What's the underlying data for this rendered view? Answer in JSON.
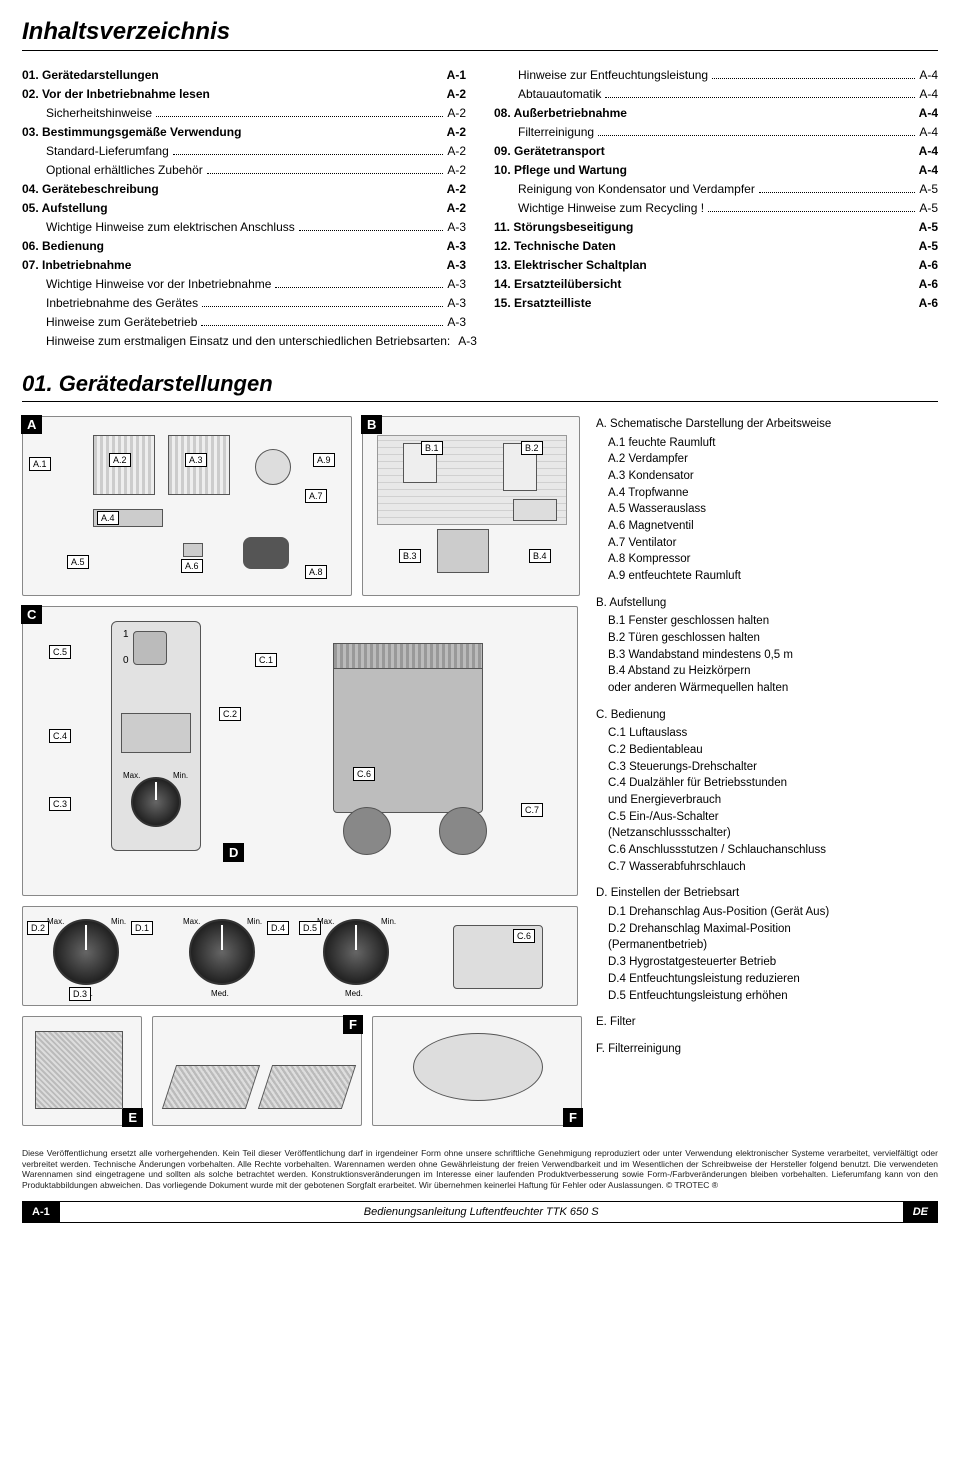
{
  "toc_title": "Inhaltsverzeichnis",
  "toc_left": [
    {
      "bold": true,
      "label": "01. Gerätedarstellungen",
      "page": "A-1",
      "dots": false
    },
    {
      "bold": true,
      "label": "02. Vor der Inbetriebnahme lesen",
      "page": "A-2",
      "dots": false
    },
    {
      "bold": false,
      "label": "Sicherheitshinweise",
      "page": "A-2",
      "dots": true,
      "sub": true
    },
    {
      "bold": true,
      "label": "03. Bestimmungsgemäße Verwendung",
      "page": "A-2",
      "dots": false
    },
    {
      "bold": false,
      "label": "Standard-Lieferumfang",
      "page": "A-2",
      "dots": true,
      "sub": true
    },
    {
      "bold": false,
      "label": "Optional erhältliches Zubehör",
      "page": "A-2",
      "dots": true,
      "sub": true
    },
    {
      "bold": true,
      "label": "04. Gerätebeschreibung",
      "page": "A-2",
      "dots": false
    },
    {
      "bold": true,
      "label": "05. Aufstellung",
      "page": "A-2",
      "dots": false
    },
    {
      "bold": false,
      "label": "Wichtige Hinweise zum elektrischen Anschluss",
      "page": "A-3",
      "dots": true,
      "sub": true
    },
    {
      "bold": true,
      "label": "06. Bedienung",
      "page": "A-3",
      "dots": false
    },
    {
      "bold": true,
      "label": "07. Inbetriebnahme",
      "page": "A-3",
      "dots": false
    },
    {
      "bold": false,
      "label": "Wichtige Hinweise vor der Inbetriebnahme",
      "page": "A-3",
      "dots": true,
      "sub": true
    },
    {
      "bold": false,
      "label": "Inbetriebnahme des Gerätes",
      "page": "A-3",
      "dots": true,
      "sub": true
    },
    {
      "bold": false,
      "label": "Hinweise zum Gerätebetrieb",
      "page": "A-3",
      "dots": true,
      "sub": true
    },
    {
      "bold": false,
      "label": "Hinweise zum erstmaligen Einsatz und den unterschiedlichen Betriebsarten:",
      "page": "A-3",
      "dots": true,
      "sub": true
    }
  ],
  "toc_right": [
    {
      "bold": false,
      "label": "Hinweise zur Entfeuchtungsleistung",
      "page": "A-4",
      "dots": true,
      "sub": true
    },
    {
      "bold": false,
      "label": "Abtauautomatik",
      "page": "A-4",
      "dots": true,
      "sub": true
    },
    {
      "bold": true,
      "label": "08. Außerbetriebnahme",
      "page": "A-4",
      "dots": false
    },
    {
      "bold": false,
      "label": "Filterreinigung",
      "page": "A-4",
      "dots": true,
      "sub": true
    },
    {
      "bold": true,
      "label": "09. Gerätetransport",
      "page": "A-4",
      "dots": false
    },
    {
      "bold": true,
      "label": "10. Pflege und Wartung",
      "page": "A-4",
      "dots": false
    },
    {
      "bold": false,
      "label": "Reinigung von Kondensator und Verdampfer",
      "page": "A-5",
      "dots": true,
      "sub": true
    },
    {
      "bold": false,
      "label": "Wichtige Hinweise zum Recycling !",
      "page": "A-5",
      "dots": true,
      "sub": true
    },
    {
      "bold": true,
      "label": "11. Störungsbeseitigung",
      "page": "A-5",
      "dots": false
    },
    {
      "bold": true,
      "label": "12. Technische Daten",
      "page": "A-5",
      "dots": false
    },
    {
      "bold": true,
      "label": "13. Elektrischer Schaltplan",
      "page": "A-6",
      "dots": false
    },
    {
      "bold": true,
      "label": "14. Ersatzteilübersicht",
      "page": "A-6",
      "dots": false
    },
    {
      "bold": true,
      "label": "15. Ersatzteilliste",
      "page": "A-6",
      "dots": false
    }
  ],
  "section1_title": "01. Gerätedarstellungen",
  "panel_tags": {
    "A": "A",
    "B": "B",
    "C": "C",
    "D": "D",
    "E": "E",
    "F": "F",
    "F2": "F"
  },
  "callouts": {
    "A1": "A.1",
    "A2": "A.2",
    "A3": "A.3",
    "A4": "A.4",
    "A5": "A.5",
    "A6": "A.6",
    "A7": "A.7",
    "A8": "A.8",
    "A9": "A.9",
    "B1": "B.1",
    "B2": "B.2",
    "B3": "B.3",
    "B4": "B.4",
    "C1": "C.1",
    "C2": "C.2",
    "C3": "C.3",
    "C4": "C.4",
    "C5": "C.5",
    "C6": "C.6",
    "C6b": "C.6",
    "C7": "C.7",
    "D1": "D.1",
    "D2": "D.2",
    "D3": "D.3",
    "D4": "D.4",
    "D5": "D.5"
  },
  "dial_labels": {
    "max": "Max.",
    "min": "Min.",
    "med": "Med.",
    "one": "1",
    "zero": "0"
  },
  "legend": {
    "A": {
      "head": "A. Schematische Darstellung der Arbeitsweise",
      "items": [
        "A.1  feuchte Raumluft",
        "A.2  Verdampfer",
        "A.3  Kondensator",
        "A.4  Tropfwanne",
        "A.5  Wasserauslass",
        "A.6  Magnetventil",
        "A.7  Ventilator",
        "A.8  Kompressor",
        "A.9  entfeuchtete Raumluft"
      ]
    },
    "B": {
      "head": "B. Aufstellung",
      "items": [
        "B.1  Fenster geschlossen halten",
        "B.2  Türen geschlossen halten",
        "B.3  Wandabstand mindestens 0,5 m",
        "B.4  Abstand zu Heizkörpern",
        "       oder anderen Wärmequellen halten"
      ]
    },
    "C": {
      "head": "C. Bedienung",
      "items": [
        "C.1  Luftauslass",
        "C.2  Bedientableau",
        "C.3  Steuerungs-Drehschalter",
        "C.4  Dualzähler für Betriebsstunden",
        "       und Energieverbrauch",
        "C.5  Ein-/Aus-Schalter",
        "       (Netzanschlussschalter)",
        "C.6  Anschlussstutzen / Schlauchanschluss",
        "C.7  Wasserabfuhrschlauch"
      ]
    },
    "D": {
      "head": "D. Einstellen der Betriebsart",
      "items": [
        "D.1  Drehanschlag Aus-Position (Gerät Aus)",
        "D.2  Drehanschlag Maximal-Position",
        "       (Permanentbetrieb)",
        "D.3  Hygrostatgesteuerter Betrieb",
        "D.4  Entfeuchtungsleistung reduzieren",
        "D.5  Entfeuchtungsleistung erhöhen"
      ]
    },
    "E": {
      "head": "E.  Filter",
      "items": []
    },
    "F": {
      "head": "F.  Filterreinigung",
      "items": []
    }
  },
  "fineprint": "Diese Veröffentlichung ersetzt alle vorhergehenden. Kein Teil dieser Veröffentlichung darf in irgendeiner Form ohne unsere schriftliche Genehmigung reproduziert oder unter Verwendung elektronischer Systeme verarbeitet, vervielfältigt oder verbreitet werden. Technische Änderungen vorbehalten. Alle Rechte vorbehalten. Warennamen werden ohne Gewährleistung der freien Verwendbarkeit und im Wesentlichen der Schreibweise der Hersteller folgend benutzt. Die verwendeten Warennamen sind eingetragene und sollten als solche betrachtet werden. Konstruktionsveränderungen im Interesse einer laufenden Produktverbesserung sowie Form-/Farbveränderungen bleiben vorbehalten. Lieferumfang kann von den Produktabbildungen abweichen. Das vorliegende Dokument wurde mit der gebotenen Sorgfalt erarbeitet. Wir übernehmen keinerlei Haftung für Fehler oder Auslassungen. © TROTEC ®",
  "footer": {
    "left": "A-1",
    "mid": "Bedienungsanleitung Luftentfeuchter TTK 650 S",
    "right": "DE"
  },
  "colors": {
    "black": "#000000",
    "panel_bg": "#f5f5f5",
    "panel_border": "#888888"
  }
}
